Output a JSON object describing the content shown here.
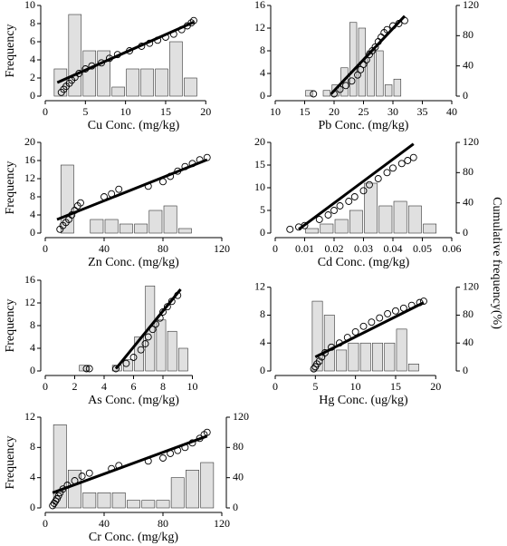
{
  "side_label": "Cumulative frequency(%)",
  "chart_data": [
    {
      "type": "histogram",
      "xlabel": "Cu Conc. (mg/kg)",
      "ylabel": "Frequency",
      "bins": [
        1,
        2.8,
        4.6,
        6.4,
        8.2,
        10,
        11.8,
        13.6,
        15.4,
        17.2,
        19,
        20.8
      ],
      "counts": [
        3,
        9,
        5,
        5,
        1,
        3,
        3,
        3,
        6,
        2,
        0
      ],
      "xlim": [
        0,
        22
      ],
      "xticks": [
        0,
        5,
        10,
        15,
        20
      ],
      "ylim": [
        0,
        10
      ],
      "yticks": [
        0,
        2,
        4,
        6,
        8,
        10
      ],
      "y2lim": [
        0,
        120
      ],
      "bar_color": "#e0e0e0",
      "cumulative": {
        "x": [
          2,
          2.3,
          2.6,
          3,
          3.3,
          3.7,
          4.2,
          5,
          5.8,
          7,
          8,
          9,
          10.5,
          12,
          13,
          14,
          15,
          16,
          17,
          17.7,
          18.2,
          18.5
        ],
        "values": [
          5,
          9,
          13,
          17,
          21,
          25,
          30,
          36,
          40,
          44,
          50,
          55,
          60,
          66,
          70,
          74,
          78,
          82,
          88,
          93,
          97,
          100
        ]
      },
      "fit": {
        "x": [
          1.5,
          18.5
        ],
        "values": [
          18,
          98
        ]
      }
    },
    {
      "type": "histogram",
      "xlabel": "Pb Conc. (mg/kg)",
      "bins": [
        15,
        16.5,
        18,
        19.5,
        21,
        22.5,
        24,
        25.5,
        27,
        28.5,
        30,
        31.5,
        33
      ],
      "counts": [
        1,
        0,
        1,
        2,
        5,
        13,
        12,
        8,
        8,
        2,
        3,
        0
      ],
      "xlim": [
        10,
        40
      ],
      "xticks": [
        10,
        15,
        20,
        25,
        30,
        35,
        40
      ],
      "ylim": [
        0,
        16
      ],
      "yticks": [
        0,
        4,
        8,
        12,
        16
      ],
      "y2lim": [
        0,
        120
      ],
      "y2ticks": [
        0,
        40,
        80,
        120
      ],
      "bar_color": "#e0e0e0",
      "cumulative": {
        "x": [
          16.5,
          20,
          21,
          22,
          23,
          24,
          24.5,
          25,
          25.5,
          26,
          26.5,
          27,
          27.5,
          28,
          28.5,
          29,
          30,
          31,
          32
        ],
        "values": [
          3,
          3,
          9,
          14,
          20,
          28,
          35,
          42,
          48,
          55,
          60,
          65,
          72,
          78,
          84,
          88,
          93,
          96,
          100
        ]
      },
      "fit": {
        "x": [
          19.5,
          32
        ],
        "values": [
          3,
          106
        ]
      }
    },
    {
      "type": "histogram",
      "xlabel": "Zn Conc. (mg/kg)",
      "ylabel": "Frequency",
      "bins": [
        0,
        10,
        20,
        30,
        40,
        50,
        60,
        70,
        80,
        90,
        100,
        110
      ],
      "counts": [
        0,
        15,
        0,
        3,
        3,
        2,
        2,
        5,
        6,
        1,
        0
      ],
      "xlim": [
        0,
        120
      ],
      "xticks": [
        0,
        40,
        80,
        120
      ],
      "ylim": [
        0,
        20
      ],
      "yticks": [
        0,
        4,
        8,
        12,
        16,
        20
      ],
      "y2lim": [
        0,
        120
      ],
      "bar_color": "#e0e0e0",
      "cumulative": {
        "x": [
          10,
          12,
          14,
          16,
          18,
          20,
          22,
          24,
          40,
          45,
          50,
          70,
          80,
          85,
          90,
          95,
          100,
          105,
          110
        ],
        "values": [
          5,
          10,
          14,
          18,
          24,
          30,
          36,
          40,
          48,
          52,
          58,
          62,
          68,
          75,
          82,
          88,
          92,
          97,
          100
        ]
      },
      "fit": {
        "x": [
          8,
          110
        ],
        "values": [
          18,
          97
        ]
      }
    },
    {
      "type": "histogram",
      "xlabel": "Cd Conc. (mg/kg)",
      "bins": [
        0.005,
        0.01,
        0.015,
        0.02,
        0.025,
        0.03,
        0.035,
        0.04,
        0.045,
        0.05,
        0.055,
        0.06
      ],
      "counts": [
        0,
        1,
        2,
        3,
        5,
        11,
        6,
        7,
        6,
        2,
        0
      ],
      "xlim": [
        0,
        0.06
      ],
      "xticks": [
        0,
        0.01,
        0.02,
        0.03,
        0.04,
        0.05,
        0.06
      ],
      "ylim": [
        0,
        20
      ],
      "yticks": [
        0,
        5,
        10,
        15,
        20
      ],
      "y2lim": [
        0,
        120
      ],
      "y2ticks": [
        0,
        40,
        80,
        120
      ],
      "bar_color": "#e0e0e0",
      "cumulative": {
        "x": [
          0.005,
          0.008,
          0.01,
          0.015,
          0.018,
          0.02,
          0.022,
          0.025,
          0.027,
          0.03,
          0.032,
          0.035,
          0.038,
          0.04,
          0.043,
          0.045,
          0.047
        ],
        "values": [
          5,
          8,
          10,
          18,
          24,
          30,
          36,
          42,
          48,
          56,
          64,
          72,
          80,
          86,
          92,
          96,
          100
        ]
      },
      "fit": {
        "x": [
          0.008,
          0.047
        ],
        "values": [
          5,
          118
        ]
      }
    },
    {
      "type": "histogram",
      "xlabel": "As Conc. (mg/kg)",
      "ylabel": "Frequency",
      "bins": [
        1.5,
        2.25,
        3,
        3.75,
        4.5,
        5.25,
        6,
        6.75,
        7.5,
        8.25,
        9,
        9.75,
        10.5,
        11.25
      ],
      "counts": [
        0,
        1,
        0,
        0,
        1,
        2,
        6,
        15,
        9,
        7,
        4,
        0,
        0
      ],
      "xlim": [
        0,
        12
      ],
      "xticks": [
        0,
        2,
        4,
        6,
        8,
        10
      ],
      "ylim": [
        0,
        16
      ],
      "yticks": [
        0,
        4,
        8,
        12,
        16
      ],
      "y2lim": [
        0,
        120
      ],
      "bar_color": "#e0e0e0",
      "cumulative": {
        "x": [
          2.8,
          3,
          4.8,
          5.5,
          6,
          6.5,
          6.8,
          7,
          7.3,
          7.5,
          7.8,
          8,
          8.3,
          8.6,
          9
        ],
        "values": [
          3,
          3,
          3,
          10,
          18,
          28,
          36,
          45,
          55,
          62,
          70,
          78,
          85,
          92,
          100
        ]
      },
      "fit": {
        "x": [
          4.8,
          9.2
        ],
        "values": [
          3,
          108
        ]
      }
    },
    {
      "type": "histogram",
      "xlabel": "Hg Conc. (ug/kg)",
      "bins": [
        3,
        4.5,
        6,
        7.5,
        9,
        10.5,
        12,
        13.5,
        15,
        16.5,
        18,
        19.5,
        21
      ],
      "counts": [
        0,
        10,
        8,
        3,
        4,
        4,
        4,
        4,
        6,
        1,
        0,
        0
      ],
      "xlim": [
        0,
        22
      ],
      "xticks": [
        0,
        5,
        10,
        15,
        20
      ],
      "ylim": [
        0,
        13
      ],
      "yticks": [
        0,
        4,
        8,
        12
      ],
      "y2lim": [
        0,
        130
      ],
      "y2ticks": [
        0,
        40,
        80,
        120
      ],
      "bar_color": "#e0e0e0",
      "cumulative": {
        "x": [
          4.8,
          5,
          5.2,
          5.5,
          5.8,
          6.2,
          7,
          8,
          9,
          10,
          11,
          12,
          13,
          14,
          15,
          16,
          17,
          18,
          18.5
        ],
        "values": [
          3,
          6,
          10,
          14,
          20,
          26,
          34,
          40,
          48,
          56,
          64,
          70,
          76,
          82,
          86,
          90,
          94,
          98,
          100
        ]
      },
      "fit": {
        "x": [
          5,
          18.5
        ],
        "values": [
          20,
          98
        ]
      }
    },
    {
      "type": "histogram",
      "xlabel": "Cr Conc. (mg/kg)",
      "ylabel": "Frequency",
      "bins": [
        5,
        15,
        25,
        35,
        45,
        55,
        65,
        75,
        85,
        95,
        105,
        115
      ],
      "counts": [
        11,
        5,
        2,
        2,
        2,
        1,
        1,
        1,
        4,
        5,
        6
      ],
      "xlim": [
        0,
        120
      ],
      "xticks": [
        0,
        40,
        80,
        120
      ],
      "ylim": [
        0,
        12
      ],
      "yticks": [
        0,
        4,
        8,
        12
      ],
      "y2lim": [
        0,
        120
      ],
      "y2ticks": [
        0,
        40,
        80,
        120
      ],
      "bar_color": "#e0e0e0",
      "cumulative": {
        "x": [
          5,
          6,
          7,
          8,
          9,
          10,
          12,
          15,
          20,
          25,
          30,
          45,
          50,
          70,
          80,
          85,
          90,
          95,
          100,
          105,
          108,
          110
        ],
        "values": [
          3,
          6,
          9,
          12,
          16,
          20,
          25,
          30,
          36,
          42,
          46,
          52,
          56,
          62,
          66,
          72,
          76,
          80,
          86,
          92,
          97,
          100
        ]
      },
      "fit": {
        "x": [
          5,
          110
        ],
        "values": [
          20,
          95
        ]
      }
    }
  ]
}
